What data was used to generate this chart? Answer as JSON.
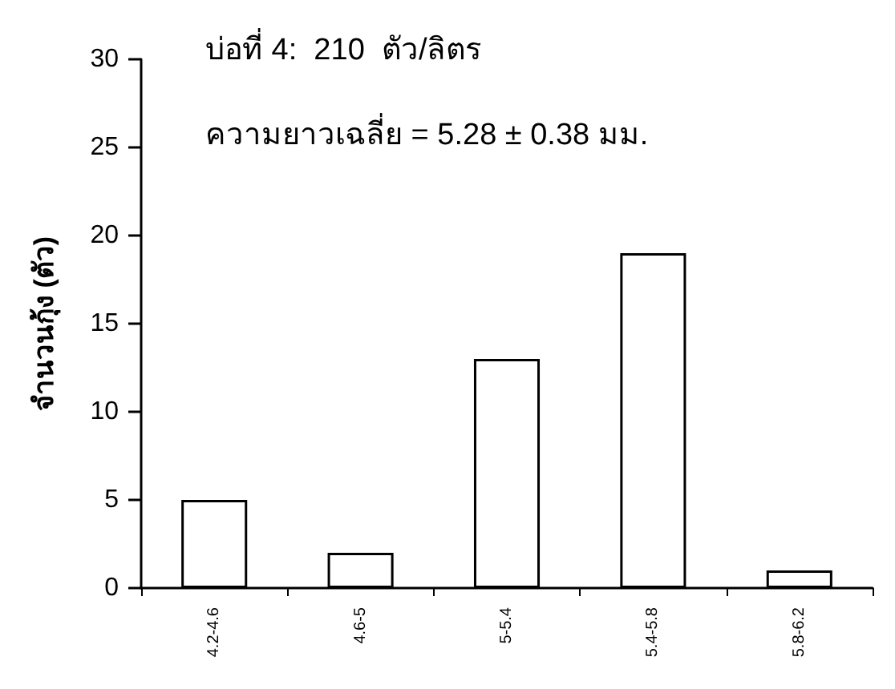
{
  "chart_data": {
    "type": "bar",
    "ylabel": "จำนวนกุ้ง (ตัว)",
    "annotations": [
      "บ่อที่ 4:  210  ตัว/ลิตร",
      "ความยาวเฉลี่ย = 5.28 ± 0.38 มม."
    ],
    "categories": [
      "4.2-4.6",
      "4.6-5",
      "5-5.4",
      "5.4-5.8",
      "5.8-6.2"
    ],
    "values": [
      5,
      2,
      13,
      19,
      1
    ],
    "color": "#ffffff",
    "ylim": [
      0,
      30
    ],
    "yticks": [
      0,
      5,
      10,
      15,
      20,
      25,
      30
    ],
    "grid": false
  }
}
